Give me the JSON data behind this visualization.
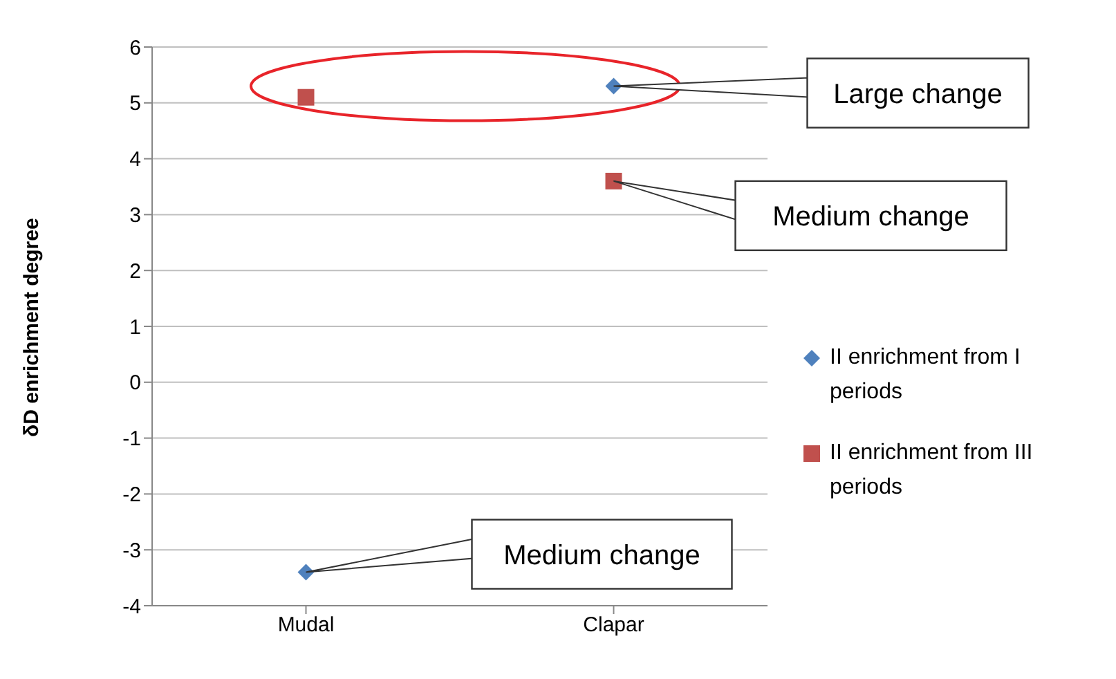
{
  "chart_data": {
    "type": "scatter",
    "ylabel": "δD enrichment degree",
    "categories": [
      "Mudal",
      "Clapar"
    ],
    "series": [
      {
        "name": "II enrichment from I periods",
        "color": "#4f81bd",
        "marker": "diamond",
        "values": [
          -3.4,
          5.3
        ]
      },
      {
        "name": "II enrichment from III periods",
        "color": "#c0504d",
        "marker": "square",
        "values": [
          5.1,
          3.6
        ]
      }
    ],
    "ylim": [
      -4,
      6
    ],
    "yticks": [
      -4,
      -3,
      -2,
      -1,
      0,
      1,
      2,
      3,
      4,
      5,
      6
    ],
    "grid": "y",
    "legend": "right",
    "annotations": [
      {
        "text": "Large change",
        "x": "Clapar",
        "y": 5.3
      },
      {
        "text": "Medium change",
        "x": "Clapar",
        "y": 3.6
      },
      {
        "text": "Medium change",
        "x": "Mudal",
        "y": -3.4
      }
    ]
  }
}
